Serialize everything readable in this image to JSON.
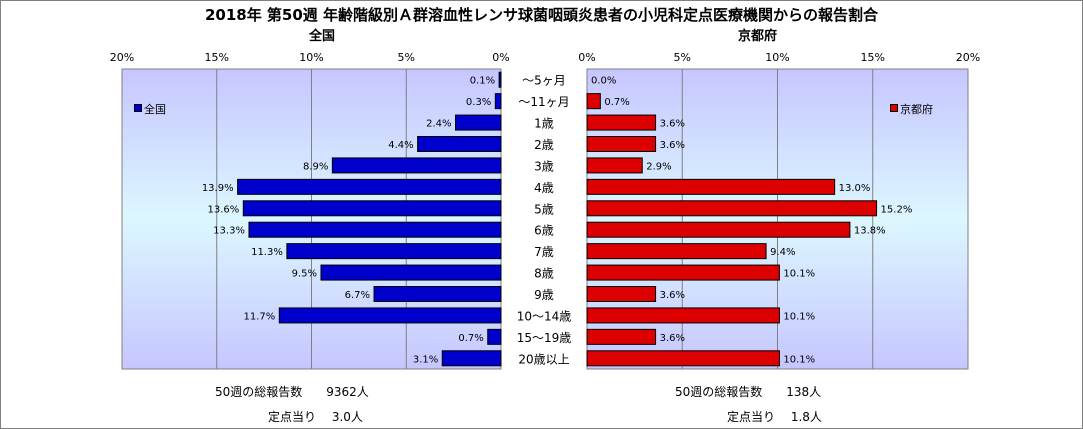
{
  "title": "2018年 第50週 年齢階級別Ａ群溶血性レンサ球菌咽頭炎患者の小児科定点医療機関からの報告割合",
  "chart_data": [
    {
      "type": "bar",
      "orientation": "horizontal",
      "title": "全国",
      "legend": "全国",
      "legend_position": "top-left",
      "direction": "right-to-left",
      "color": "#0000cc",
      "xlim": [
        0,
        20
      ],
      "ticks": [
        "20%",
        "15%",
        "10%",
        "5%",
        "0%"
      ],
      "categories": [
        "～5ヶ月",
        "～11ヶ月",
        "1歳",
        "2歳",
        "3歳",
        "4歳",
        "5歳",
        "6歳",
        "7歳",
        "8歳",
        "9歳",
        "10～14歳",
        "15～19歳",
        "20歳以上"
      ],
      "values": [
        0.1,
        0.3,
        2.4,
        4.4,
        8.9,
        13.9,
        13.6,
        13.3,
        11.3,
        9.5,
        6.7,
        11.7,
        0.7,
        3.1
      ],
      "labels": [
        "0.1%",
        "0.3%",
        "2.4%",
        "4.4%",
        "8.9%",
        "13.9%",
        "13.6%",
        "13.3%",
        "11.3%",
        "9.5%",
        "6.7%",
        "11.7%",
        "0.7%",
        "3.1%"
      ]
    },
    {
      "type": "bar",
      "orientation": "horizontal",
      "title": "京都府",
      "legend": "京都府",
      "legend_position": "top-right",
      "direction": "left-to-right",
      "color": "#dd0000",
      "xlim": [
        0,
        20
      ],
      "ticks": [
        "0%",
        "5%",
        "10%",
        "15%",
        "20%"
      ],
      "categories": [
        "～5ヶ月",
        "～11ヶ月",
        "1歳",
        "2歳",
        "3歳",
        "4歳",
        "5歳",
        "6歳",
        "7歳",
        "8歳",
        "9歳",
        "10～14歳",
        "15～19歳",
        "20歳以上"
      ],
      "values": [
        0.0,
        0.7,
        3.6,
        3.6,
        2.9,
        13.0,
        15.2,
        13.8,
        9.4,
        10.1,
        3.6,
        10.1,
        3.6,
        10.1
      ],
      "labels": [
        "0.0%",
        "0.7%",
        "3.6%",
        "3.6%",
        "2.9%",
        "13.0%",
        "15.2%",
        "13.8%",
        "9.4%",
        "10.1%",
        "3.6%",
        "10.1%",
        "3.6%",
        "10.1%"
      ]
    }
  ],
  "footer": {
    "left_total": "50週の総報告数　　9362人",
    "left_per": "定点当り　 3.0人",
    "right_total": "50週の総報告数　　138人",
    "right_per": "定点当り　 1.8人"
  }
}
